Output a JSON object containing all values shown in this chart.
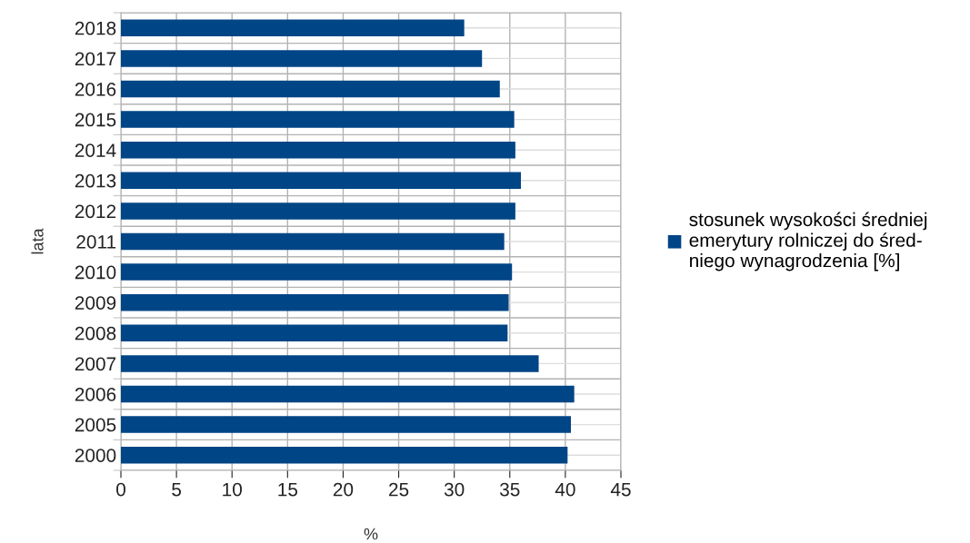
{
  "chart_data": {
    "type": "bar",
    "orientation": "horizontal",
    "xlabel": "%",
    "ylabel": "lata",
    "categories": [
      "2018",
      "2017",
      "2016",
      "2015",
      "2014",
      "2013",
      "2012",
      "2011",
      "2010",
      "2009",
      "2008",
      "2007",
      "2006",
      "2005",
      "2000"
    ],
    "series": [
      {
        "name": "stosunek wysokości średniej\nemerytury rolniczej do śred-\nniego wynagrodzenia [%]",
        "color": "#004586",
        "values": [
          30.9,
          32.5,
          34.1,
          35.4,
          35.5,
          36.0,
          35.5,
          34.5,
          35.2,
          34.9,
          34.8,
          37.6,
          40.8,
          40.5,
          40.2
        ]
      }
    ],
    "xlim": [
      0,
      45
    ],
    "xticks": [
      0,
      5,
      10,
      15,
      20,
      25,
      30,
      35,
      40,
      45
    ],
    "grid": true,
    "legend": "right"
  }
}
